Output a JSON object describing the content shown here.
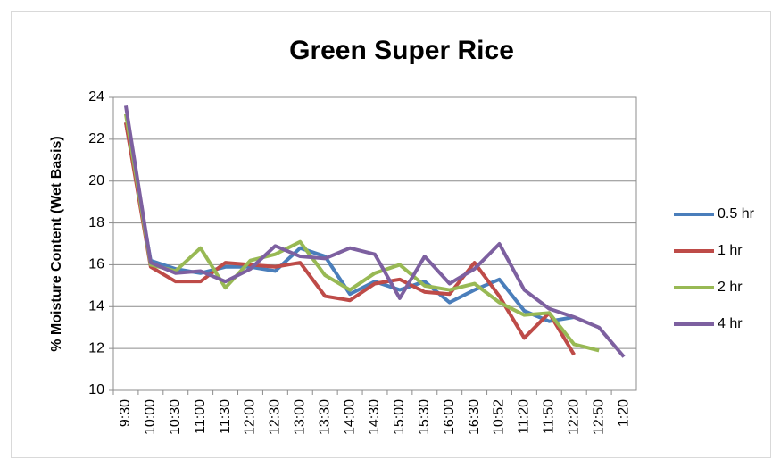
{
  "chart_data": {
    "type": "line",
    "title": "Green Super Rice",
    "y_label": "% Moisture Content (Wet Basis)",
    "categories": [
      "9:30",
      "10:00",
      "10:30",
      "11:00",
      "11:30",
      "12:00",
      "12:30",
      "13:00",
      "13:30",
      "14:00",
      "14:30",
      "15:00",
      "15:30",
      "16:00",
      "16:30",
      "10:52",
      "11:20",
      "11:50",
      "12:20",
      "12:50",
      "1:20"
    ],
    "series": [
      {
        "name": "0.5 hr",
        "color": "#4a7ebb",
        "values": [
          22.8,
          16.2,
          15.8,
          15.6,
          15.9,
          15.9,
          15.7,
          16.8,
          16.4,
          14.6,
          15.2,
          14.8,
          15.2,
          14.2,
          14.8,
          15.3,
          13.8,
          13.3,
          13.5,
          null,
          null
        ]
      },
      {
        "name": "1 hr",
        "color": "#be4b48",
        "values": [
          22.8,
          15.9,
          15.2,
          15.2,
          16.1,
          16.0,
          15.9,
          16.1,
          14.5,
          14.3,
          15.1,
          15.3,
          14.7,
          14.6,
          16.1,
          14.5,
          12.5,
          13.7,
          11.7,
          null,
          null
        ]
      },
      {
        "name": "2 hr",
        "color": "#98b954",
        "values": [
          23.2,
          16.0,
          15.7,
          16.8,
          14.9,
          16.2,
          16.5,
          17.1,
          15.5,
          14.8,
          15.6,
          16.0,
          15.0,
          14.8,
          15.1,
          14.2,
          13.6,
          13.7,
          12.2,
          11.9,
          null
        ]
      },
      {
        "name": "4 hr",
        "color": "#7d60a0",
        "values": [
          23.6,
          16.1,
          15.6,
          15.7,
          15.2,
          15.8,
          16.9,
          16.4,
          16.3,
          16.8,
          16.5,
          14.4,
          16.4,
          15.1,
          15.8,
          17.0,
          14.8,
          13.9,
          13.5,
          13.0,
          11.6
        ]
      }
    ],
    "ylim": [
      10,
      24
    ],
    "yticks": [
      10,
      12,
      14,
      16,
      18,
      20,
      22,
      24
    ],
    "grid": true,
    "legend": "right"
  }
}
